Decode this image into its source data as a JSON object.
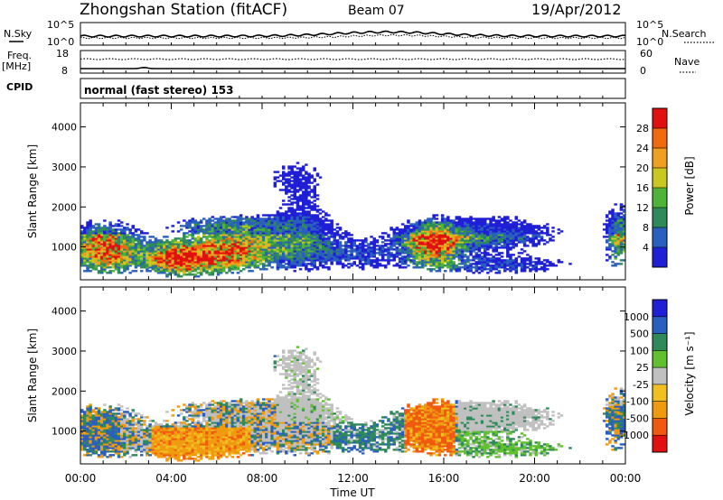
{
  "header": {
    "station": "Zhongshan Station (fitACF)",
    "beam": "Beam 07",
    "date": "19/Apr/2012"
  },
  "aux": {
    "nsky_label": "N.Sky",
    "nsearch_label": "N.Search",
    "noise_ticks": [
      "10^5",
      "10^0"
    ],
    "freq_label": "Freq.",
    "freq_unit": "[MHz]",
    "freq_ticks": [
      18,
      8
    ],
    "nave_label": "Nave",
    "nave_ticks": [
      60,
      0
    ],
    "cpid_label": "CPID",
    "cpid_value": "normal (fast stereo) 153"
  },
  "colors": {
    "power": [
      "#1f1fd6",
      "#2a5fbf",
      "#2f8a5a",
      "#4fb33a",
      "#c8c820",
      "#f0a020",
      "#f06a10",
      "#e01010"
    ],
    "velocity": [
      "#e01010",
      "#f05a10",
      "#f09a10",
      "#f0c020",
      "#c0c0c0",
      "#60c030",
      "#2f8a5a",
      "#2a5fbf",
      "#1f1fd6"
    ]
  },
  "chart_data": [
    {
      "type": "heatmap",
      "name": "power",
      "xlabel": "",
      "ylabel": "Slant Range [km]",
      "xlim": [
        0,
        24
      ],
      "ylim": [
        180,
        4600
      ],
      "y_ticks": [
        1000,
        2000,
        3000,
        4000
      ],
      "colorbar_label": "Power [dB]",
      "colorbar_ticks": [
        4,
        8,
        12,
        16,
        20,
        24,
        28
      ],
      "colorbar_range": [
        0,
        32
      ]
    },
    {
      "type": "heatmap",
      "name": "velocity",
      "xlabel": "Time UT",
      "ylabel": "Slant Range [km]",
      "xlim": [
        0,
        24
      ],
      "ylim": [
        180,
        4600
      ],
      "y_ticks": [
        1000,
        2000,
        3000,
        4000
      ],
      "x_tick_labels": [
        "00:00",
        "04:00",
        "08:00",
        "12:00",
        "16:00",
        "20:00",
        "00:00"
      ],
      "colorbar_label": "Velocity [m s⁻¹]",
      "colorbar_ticks": [
        "1000",
        "500",
        "100",
        "25",
        "-25",
        "-100",
        "-500",
        "-1000"
      ]
    }
  ]
}
